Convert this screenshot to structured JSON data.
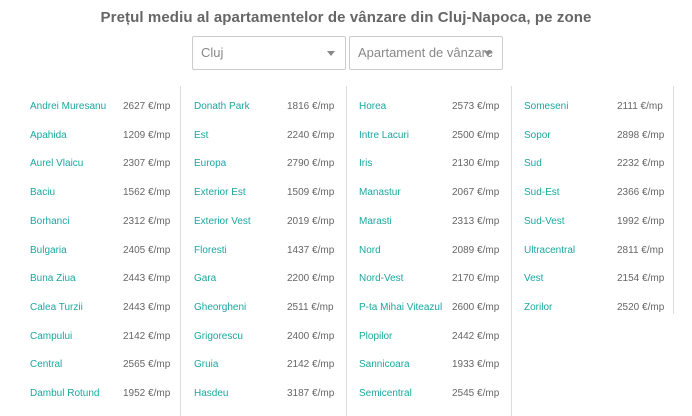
{
  "title": "Prețul mediu al apartamentelor de vânzare din Cluj-Napoca, pe zone",
  "filters": {
    "city": "Cluj",
    "type": "Apartament de vânzare"
  },
  "columns": [
    [
      {
        "zone": "Andrei Muresanu",
        "price": "2627 €/mp"
      },
      {
        "zone": "Apahida",
        "price": "1209 €/mp"
      },
      {
        "zone": "Aurel Vlaicu",
        "price": "2307 €/mp"
      },
      {
        "zone": "Baciu",
        "price": "1562 €/mp"
      },
      {
        "zone": "Borhanci",
        "price": "2312 €/mp"
      },
      {
        "zone": "Bulgaria",
        "price": "2405 €/mp"
      },
      {
        "zone": "Buna Ziua",
        "price": "2443 €/mp"
      },
      {
        "zone": "Calea Turzii",
        "price": "2443 €/mp"
      },
      {
        "zone": "Campului",
        "price": "2142 €/mp"
      },
      {
        "zone": "Central",
        "price": "2565 €/mp"
      },
      {
        "zone": "Dambul Rotund",
        "price": "1952 €/mp"
      }
    ],
    [
      {
        "zone": "Donath Park",
        "price": "1816 €/mp"
      },
      {
        "zone": "Est",
        "price": "2240 €/mp"
      },
      {
        "zone": "Europa",
        "price": "2790 €/mp"
      },
      {
        "zone": "Exterior Est",
        "price": "1509 €/mp"
      },
      {
        "zone": "Exterior Vest",
        "price": "2019 €/mp"
      },
      {
        "zone": "Floresti",
        "price": "1437 €/mp"
      },
      {
        "zone": "Gara",
        "price": "2200 €/mp"
      },
      {
        "zone": "Gheorgheni",
        "price": "2511 €/mp"
      },
      {
        "zone": "Grigorescu",
        "price": "2400 €/mp"
      },
      {
        "zone": "Gruia",
        "price": "2142 €/mp"
      },
      {
        "zone": "Hasdeu",
        "price": "3187 €/mp"
      }
    ],
    [
      {
        "zone": "Horea",
        "price": "2573 €/mp"
      },
      {
        "zone": "Intre Lacuri",
        "price": "2500 €/mp"
      },
      {
        "zone": "Iris",
        "price": "2130 €/mp"
      },
      {
        "zone": "Manastur",
        "price": "2067 €/mp"
      },
      {
        "zone": "Marasti",
        "price": "2313 €/mp"
      },
      {
        "zone": "Nord",
        "price": "2089 €/mp"
      },
      {
        "zone": "Nord-Vest",
        "price": "2170 €/mp"
      },
      {
        "zone": "P-ta Mihai Viteazul",
        "price": "2600 €/mp"
      },
      {
        "zone": "Plopilor",
        "price": "2442 €/mp"
      },
      {
        "zone": "Sannicoara",
        "price": "1933 €/mp"
      },
      {
        "zone": "Semicentral",
        "price": "2545 €/mp"
      }
    ],
    [
      {
        "zone": "Someseni",
        "price": "2111 €/mp"
      },
      {
        "zone": "Sopor",
        "price": "2898 €/mp"
      },
      {
        "zone": "Sud",
        "price": "2232 €/mp"
      },
      {
        "zone": "Sud-Est",
        "price": "2366 €/mp"
      },
      {
        "zone": "Sud-Vest",
        "price": "1992 €/mp"
      },
      {
        "zone": "Ultracentral",
        "price": "2811 €/mp"
      },
      {
        "zone": "Vest",
        "price": "2154 €/mp"
      },
      {
        "zone": "Zorilor",
        "price": "2520 €/mp"
      }
    ]
  ]
}
